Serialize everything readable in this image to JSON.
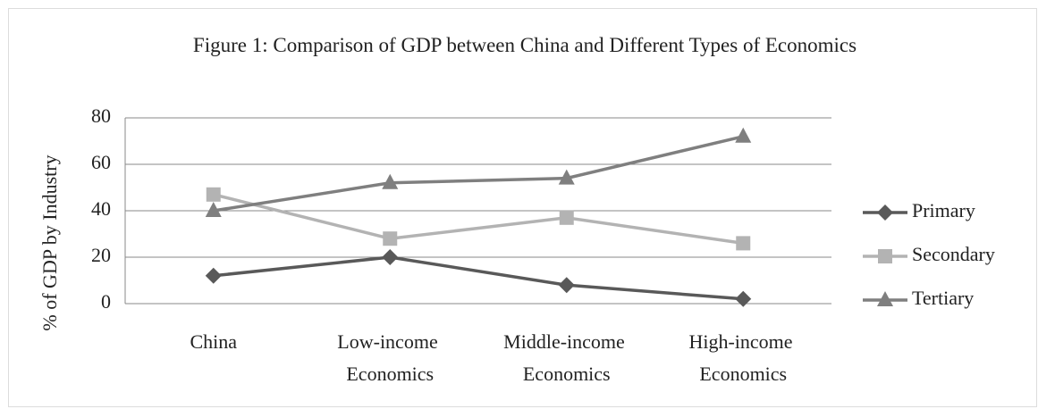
{
  "chart_data": {
    "type": "line",
    "title": "Figure 1: Comparison of GDP between China and Different Types of Economics",
    "ylabel": "% of GDP by Industry",
    "categories": [
      "China",
      "Low-income Economics",
      "Middle-income Economics",
      "High-income Economics"
    ],
    "series": [
      {
        "name": "Primary",
        "color": "#595959",
        "marker": "diamond",
        "values": [
          12,
          20,
          8,
          2
        ]
      },
      {
        "name": "Secondary",
        "color": "#b3b3b3",
        "marker": "square",
        "values": [
          47,
          28,
          37,
          26
        ]
      },
      {
        "name": "Tertiary",
        "color": "#7f7f7f",
        "marker": "triangle",
        "values": [
          40,
          52,
          54,
          72
        ]
      }
    ],
    "ylim": [
      0,
      80
    ],
    "yticks": [
      0,
      20,
      40,
      60,
      80
    ],
    "grid": true,
    "legend": "right"
  }
}
